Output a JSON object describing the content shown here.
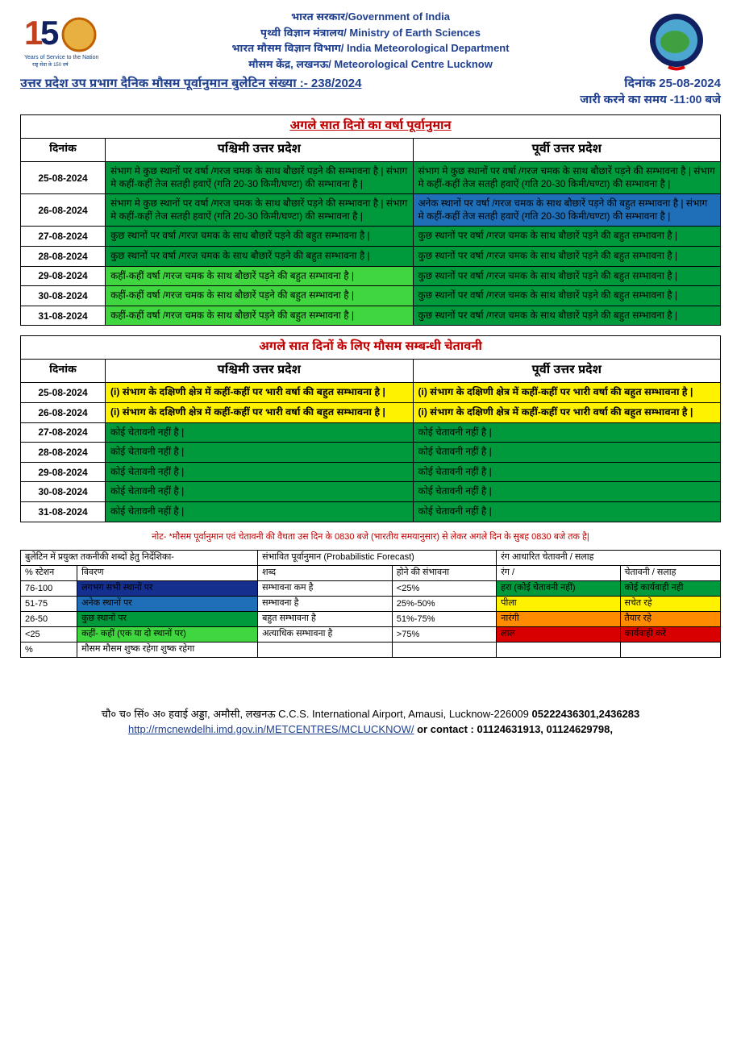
{
  "header": {
    "line1": "भारत सरकार/Government of India",
    "line2": "पृथ्वी विज्ञान मंत्रालय/ Ministry of Earth Sciences",
    "line3": "भारत मौसम विज्ञान विभाग/ India Meteorological Department",
    "line4": "मौसम केंद्र, लखनऊ/ Meteorological Centre Lucknow"
  },
  "bulletin_title": "उत्तर प्रदेश उप प्रभाग दैनिक मौसम पूर्वानुमान बुलेटिन संख्या   :- 238/2024",
  "bulletin_date": "दिनांक 25-08-2024",
  "issue_time": "जारी करने का समय -11:00 बजे",
  "table1": {
    "title": "अगले सात दिनों का वर्षा पूर्वानुमान",
    "headers": {
      "col1": "दिनांक",
      "col2": "पश्चिमी उत्तर प्रदेश",
      "col3": "पूर्वी उत्तर प्रदेश"
    },
    "rows": [
      {
        "date": "25-08-2024",
        "west": "संभाग मे कुछ स्थानों पर वर्षा /गरज चमक के साथ बौछारें पड़ने की सम्भावना है | संभाग मे कहीं-कहीं तेज सतही हवाऐं (गति 20-30 किमी/घण्टा) की सम्भावना है |",
        "west_bg": "#009a3d",
        "east": "संभाग मे कुछ स्थानों पर वर्षा /गरज चमक के साथ बौछारें पड़ने की सम्भावना है | संभाग मे कहीं-कहीं तेज सतही हवाऐं (गति 20-30 किमी/घण्टा) की सम्भावना है |",
        "east_bg": "#009a3d"
      },
      {
        "date": "26-08-2024",
        "west": "संभाग मे कुछ स्थानों पर वर्षा /गरज चमक के साथ बौछारें पड़ने की सम्भावना है | संभाग मे कहीं-कहीं तेज सतही हवाऐं (गति 20-30 किमी/घण्टा) की सम्भावना है |",
        "west_bg": "#009a3d",
        "east": "अनेक स्थानों पर वर्षा /गरज चमक के साथ बौछारें पड़ने की बहुत सम्भावना है | संभाग मे कहीं-कहीं तेज सतही हवाऐं (गति 20-30 किमी/घण्टा) की सम्भावना है |",
        "east_bg": "#1f6fb8"
      },
      {
        "date": "27-08-2024",
        "west": "कुछ स्थानों पर वर्षा /गरज चमक के साथ बौछारें पड़ने की बहुत सम्भावना है |",
        "west_bg": "#009a3d",
        "east": "कुछ स्थानों पर वर्षा /गरज चमक के साथ बौछारें पड़ने की बहुत सम्भावना है |",
        "east_bg": "#009a3d"
      },
      {
        "date": "28-08-2024",
        "west": "कुछ स्थानों पर वर्षा /गरज चमक के साथ बौछारें पड़ने की बहुत सम्भावना है |",
        "west_bg": "#009a3d",
        "east": "कुछ स्थानों पर वर्षा /गरज चमक के साथ बौछारें पड़ने की बहुत सम्भावना है |",
        "east_bg": "#009a3d"
      },
      {
        "date": "29-08-2024",
        "west": "कहीं-कहीं वर्षा /गरज चमक के साथ बौछारें पड़ने की बहुत सम्भावना है |",
        "west_bg": "#3fd63f",
        "east": "कुछ स्थानों पर वर्षा /गरज चमक के साथ बौछारें पड़ने की बहुत सम्भावना है |",
        "east_bg": "#009a3d"
      },
      {
        "date": "30-08-2024",
        "west": "कहीं-कहीं वर्षा /गरज चमक के साथ बौछारें पड़ने की बहुत सम्भावना है |",
        "west_bg": "#3fd63f",
        "east": "कुछ स्थानों पर वर्षा /गरज चमक के साथ बौछारें पड़ने की बहुत सम्भावना है |",
        "east_bg": "#009a3d"
      },
      {
        "date": "31-08-2024",
        "west": "कहीं-कहीं वर्षा /गरज चमक के साथ बौछारें पड़ने की बहुत सम्भावना है |",
        "west_bg": "#3fd63f",
        "east": "कुछ स्थानों पर वर्षा /गरज चमक के साथ बौछारें पड़ने की बहुत सम्भावना है |",
        "east_bg": "#009a3d"
      }
    ]
  },
  "table2": {
    "title": "अगले सात दिनों के लिए मौसम सम्बन्धी चेतावनी",
    "headers": {
      "col1": "दिनांक",
      "col2": "पश्चिमी उत्तर प्रदेश",
      "col3": "पूर्वी उत्तर प्रदेश"
    },
    "rows": [
      {
        "date": "25-08-2024",
        "west": "(i) संभाग के दक्षिणी क्षेत्र में कहीं-कहीं पर भारी वर्षा की बहुत सम्भावना है |",
        "west_bg": "#fff200",
        "east": "(i) संभाग के दक्षिणी क्षेत्र में कहीं-कहीं पर भारी वर्षा की बहुत सम्भावना है |",
        "east_bg": "#fff200"
      },
      {
        "date": "26-08-2024",
        "west": "(i) संभाग के दक्षिणी क्षेत्र में कहीं-कहीं पर भारी वर्षा की बहुत सम्भावना है |",
        "west_bg": "#fff200",
        "east": "(i) संभाग के दक्षिणी क्षेत्र में कहीं-कहीं पर भारी वर्षा की बहुत सम्भावना है |",
        "east_bg": "#fff200"
      },
      {
        "date": "27-08-2024",
        "west": "कोई चेतावनी नहीं है |",
        "west_bg": "#009a3d",
        "east": "कोई चेतावनी नहीं है |",
        "east_bg": "#009a3d"
      },
      {
        "date": "28-08-2024",
        "west": "कोई चेतावनी नहीं है |",
        "west_bg": "#009a3d",
        "east": "कोई चेतावनी नहीं है |",
        "east_bg": "#009a3d"
      },
      {
        "date": "29-08-2024",
        "west": "कोई चेतावनी नहीं है |",
        "west_bg": "#009a3d",
        "east": "कोई चेतावनी नहीं है |",
        "east_bg": "#009a3d"
      },
      {
        "date": "30-08-2024",
        "west": "कोई चेतावनी नहीं है |",
        "west_bg": "#009a3d",
        "east": "कोई चेतावनी नहीं है |",
        "east_bg": "#009a3d"
      },
      {
        "date": "31-08-2024",
        "west": "कोई चेतावनी नहीं है |",
        "west_bg": "#009a3d",
        "east": "कोई चेतावनी नहीं है |",
        "east_bg": "#009a3d"
      }
    ],
    "bold_rows": [
      0,
      1
    ]
  },
  "note": "नोट-   *मौसम पूर्वानुमान एवं चेतावनी की वैधता उस दिन के 0830 बजे (भारतीय समयानुसार) से लेकर अगले दिन के सुबह 0830 बजे तक है|",
  "legend": {
    "header_left": "बुलेटिन में प्रयुक्त तकनीकी शब्दों हेतु निर्देशिका-",
    "header_mid": "संभावित पूर्वानुमान (Probabilistic Forecast)",
    "header_right": "रंग आधारित चेतावनी / सलाह",
    "sub": {
      "c1": "% स्टेशन",
      "c2": "विवरण",
      "c3": "शब्द",
      "c4": "होने की संभावना",
      "c5": "रंग /",
      "c6": "चेतावनी / सलाह"
    },
    "rows": [
      {
        "a": "76-100",
        "b": "लगभग सभी स्थानों पर",
        "b_bg": "#152f8f",
        "c": "सम्भावना कम है",
        "d": "<25%",
        "e": "हरा (कोई चेतावनी नहीं)",
        "e_bg": "#009a3d",
        "f": "कोई कार्यवाही नही",
        "f_bg": "#009a3d"
      },
      {
        "a": "51-75",
        "b": "अनेक स्थानों पर",
        "b_bg": "#1f6fb8",
        "c": "सम्भावना है",
        "d": "25%-50%",
        "e": "पीला",
        "e_bg": "#fff200",
        "f": "सचेत रहे",
        "f_bg": "#fff200"
      },
      {
        "a": "26-50",
        "b": "कुछ स्थानों पर",
        "b_bg": "#009a3d",
        "c": "बहुत सम्भावना है",
        "d": "51%-75%",
        "e": "नारंगी",
        "e_bg": "#ff8c00",
        "f": "तैयार रहे",
        "f_bg": "#ff8c00"
      },
      {
        "a": "<25",
        "b": "कहीं- कहीं (एक या दो स्थानों पर)",
        "b_bg": "#3fd63f",
        "c": "अत्याधिक सम्भावना है",
        "d": ">75%",
        "e": "लाल",
        "e_bg": "#d80000",
        "f": "कार्यवाही करें",
        "f_bg": "#d80000"
      },
      {
        "a": "%",
        "b": "मौसम मौसम शुष्क रहेगा शुष्क रहेगा",
        "b_bg": "",
        "c": "",
        "d": "",
        "e": "",
        "e_bg": "",
        "f": "",
        "f_bg": ""
      }
    ]
  },
  "footer": {
    "address": "चौ० च० सिं० अ० हवाई अड्डा, अमौसी, लखनऊ  C.C.S. International Airport, Amausi, Lucknow-226009 ",
    "phone1": "05222436301,2436283",
    "url": "http://rmcnewdelhi.imd.gov.in/METCENTRES/MCLUCKNOW/",
    "contact": " or contact :  01124631913, 01124629798,"
  }
}
